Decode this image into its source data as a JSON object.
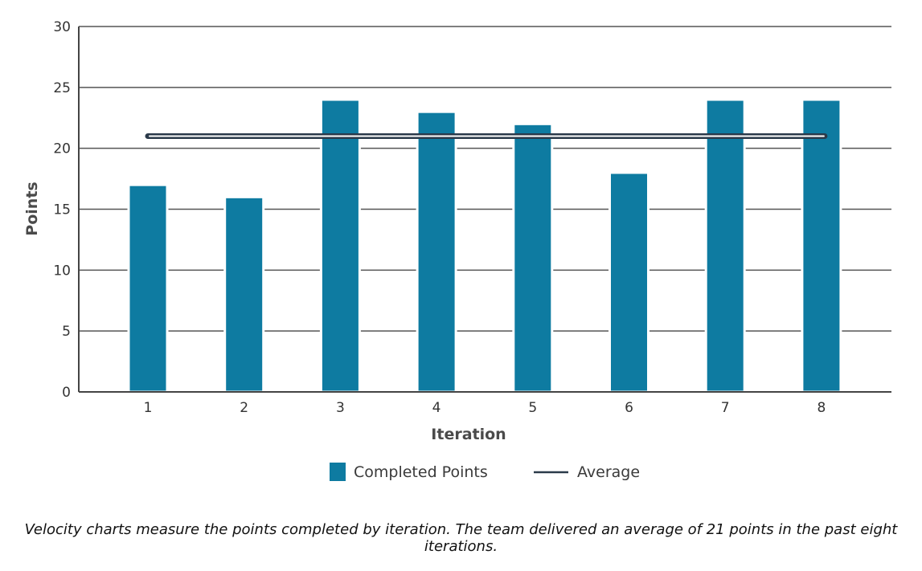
{
  "chart_data": {
    "type": "bar",
    "categories": [
      "1",
      "2",
      "3",
      "4",
      "5",
      "6",
      "7",
      "8"
    ],
    "series": [
      {
        "name": "Completed Points",
        "values": [
          17,
          16,
          24,
          23,
          22,
          18,
          24,
          24
        ]
      }
    ],
    "average": {
      "name": "Average",
      "value": 21
    },
    "xlabel": "Iteration",
    "ylabel": "Points",
    "ylim": [
      0,
      30
    ],
    "yticks": [
      0,
      5,
      10,
      15,
      20,
      25,
      30
    ],
    "grid": true,
    "legend_position": "bottom",
    "colors": {
      "bar": "#0e7ba1",
      "average_line": "#2b3a4a",
      "grid": "#555555"
    }
  },
  "caption": "Velocity charts measure the points completed by iteration. The team delivered an average of 21 points in the past eight iterations."
}
